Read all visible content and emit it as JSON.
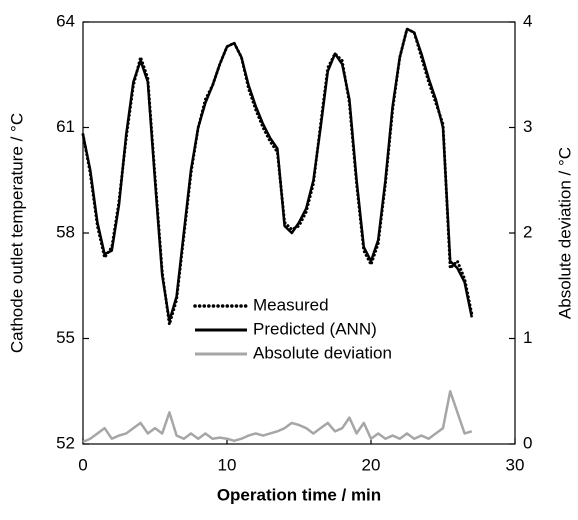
{
  "chart_data": {
    "type": "line",
    "xlabel": "Operation time / min",
    "ylabel": "Cathode outlet temperature / °C",
    "y2label": "Absolute deviation / °C",
    "x": [
      0,
      0.5,
      1,
      1.5,
      2,
      2.5,
      3,
      3.5,
      4,
      4.5,
      5,
      5.5,
      6,
      6.5,
      7,
      7.5,
      8,
      8.5,
      9,
      9.5,
      10,
      10.5,
      11,
      11.5,
      12,
      12.5,
      13,
      13.5,
      14,
      14.5,
      15,
      15.5,
      16,
      16.5,
      17,
      17.5,
      18,
      18.5,
      19,
      19.5,
      20,
      20.5,
      21,
      21.5,
      22,
      22.5,
      23,
      23.5,
      24,
      24.5,
      25,
      25.5,
      26,
      26.5,
      27
    ],
    "series": [
      {
        "name": "Measured",
        "color": "#000000",
        "style": "dotted",
        "values": [
          60.8,
          59.7,
          58.2,
          57.3,
          57.6,
          58.9,
          60.7,
          62.2,
          63.0,
          62.4,
          59.6,
          56.9,
          55.4,
          56.1,
          57.9,
          59.7,
          61.0,
          61.8,
          62.2,
          62.8,
          63.3,
          63.4,
          63.0,
          62.1,
          61.5,
          61.0,
          60.6,
          60.3,
          58.3,
          58.1,
          58.2,
          58.6,
          59.4,
          61.1,
          62.7,
          63.1,
          62.9,
          61.7,
          59.4,
          57.5,
          57.1,
          57.7,
          59.4,
          61.5,
          63.0,
          63.8,
          63.7,
          63.0,
          62.3,
          61.7,
          61.1,
          57.0,
          57.2,
          56.7,
          55.7
        ]
      },
      {
        "name": "Predicted (ANN)",
        "color": "#000000",
        "style": "solid",
        "values": [
          60.8,
          59.8,
          58.3,
          57.4,
          57.5,
          58.8,
          60.8,
          62.3,
          62.9,
          62.3,
          59.5,
          56.8,
          55.5,
          56.2,
          58.0,
          59.8,
          61.0,
          61.7,
          62.2,
          62.8,
          63.3,
          63.4,
          63.0,
          62.2,
          61.6,
          61.1,
          60.7,
          60.4,
          58.2,
          58.0,
          58.3,
          58.7,
          59.5,
          61.0,
          62.6,
          63.1,
          62.8,
          61.8,
          59.5,
          57.6,
          57.2,
          57.8,
          59.5,
          61.6,
          63.0,
          63.8,
          63.7,
          63.1,
          62.4,
          61.8,
          61.0,
          57.2,
          57.0,
          56.6,
          55.6
        ]
      },
      {
        "name": "Absolute deviation",
        "color": "#a6a6a6",
        "style": "solid",
        "axis": "y2",
        "values": [
          0.02,
          0.05,
          0.1,
          0.15,
          0.05,
          0.08,
          0.1,
          0.15,
          0.2,
          0.1,
          0.15,
          0.1,
          0.3,
          0.08,
          0.05,
          0.1,
          0.05,
          0.1,
          0.05,
          0.06,
          0.05,
          0.03,
          0.05,
          0.08,
          0.1,
          0.08,
          0.1,
          0.12,
          0.15,
          0.2,
          0.18,
          0.15,
          0.1,
          0.15,
          0.2,
          0.12,
          0.15,
          0.25,
          0.1,
          0.2,
          0.05,
          0.1,
          0.05,
          0.08,
          0.05,
          0.1,
          0.05,
          0.08,
          0.05,
          0.1,
          0.15,
          0.5,
          0.3,
          0.1,
          0.12
        ]
      }
    ],
    "xlim": [
      0,
      30
    ],
    "xticks": [
      0,
      10,
      20,
      30
    ],
    "ylim": [
      52,
      64
    ],
    "yticks": [
      52,
      55,
      58,
      61,
      64
    ],
    "y2lim": [
      0,
      4
    ],
    "y2ticks": [
      0,
      1,
      2,
      3,
      4
    ],
    "legend": "center-left",
    "grid": false
  }
}
